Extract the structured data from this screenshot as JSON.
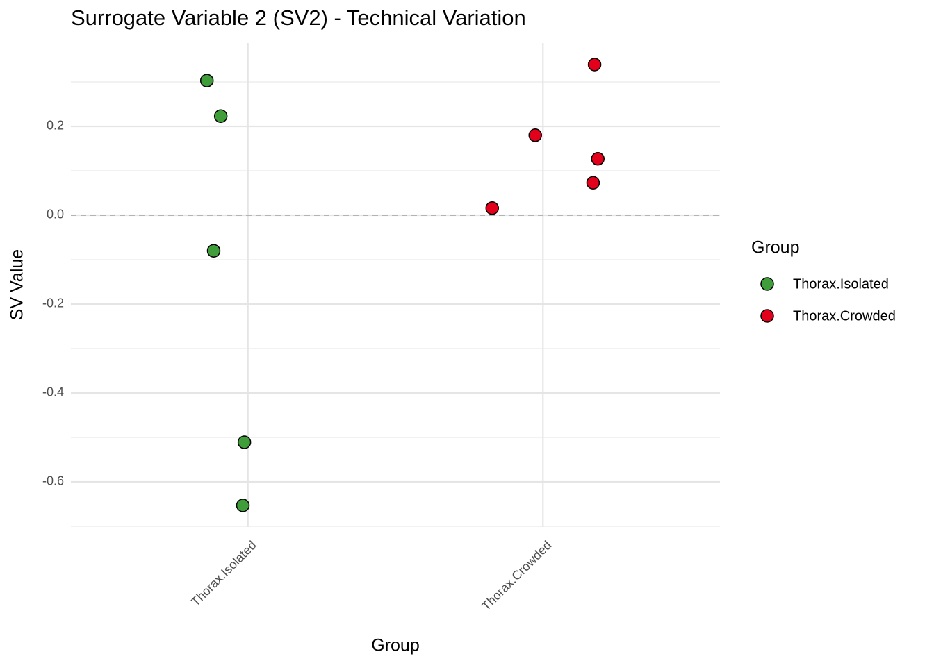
{
  "chart_data": {
    "type": "scatter",
    "title": "Surrogate Variable 2 (SV2) - Technical Variation",
    "x_label": "Group",
    "y_label": "SV Value",
    "categories": [
      "Thorax.Isolated",
      "Thorax.Crowded"
    ],
    "legend_title": "Group",
    "legend_position": "right",
    "series": [
      {
        "name": "Thorax.Isolated",
        "color": "#3f9e3a",
        "x": [
          0.861,
          0.908,
          0.884,
          0.988,
          0.983
        ],
        "values": [
          0.303,
          0.223,
          -0.08,
          -0.511,
          -0.653
        ]
      },
      {
        "name": "Thorax.Crowded",
        "color": "#e3001b",
        "x": [
          2.175,
          1.974,
          2.186,
          2.17,
          1.828
        ],
        "values": [
          0.339,
          0.18,
          0.127,
          0.073,
          0.016
        ]
      }
    ],
    "xlim": [
      0.4,
      2.6
    ],
    "ylim": [
      -0.7016,
      0.3875
    ],
    "yticks": [
      -0.6,
      -0.4,
      -0.2,
      {
        "value": 0,
        "label": "0.0"
      },
      0.2
    ],
    "hline": 0,
    "grid": true
  }
}
